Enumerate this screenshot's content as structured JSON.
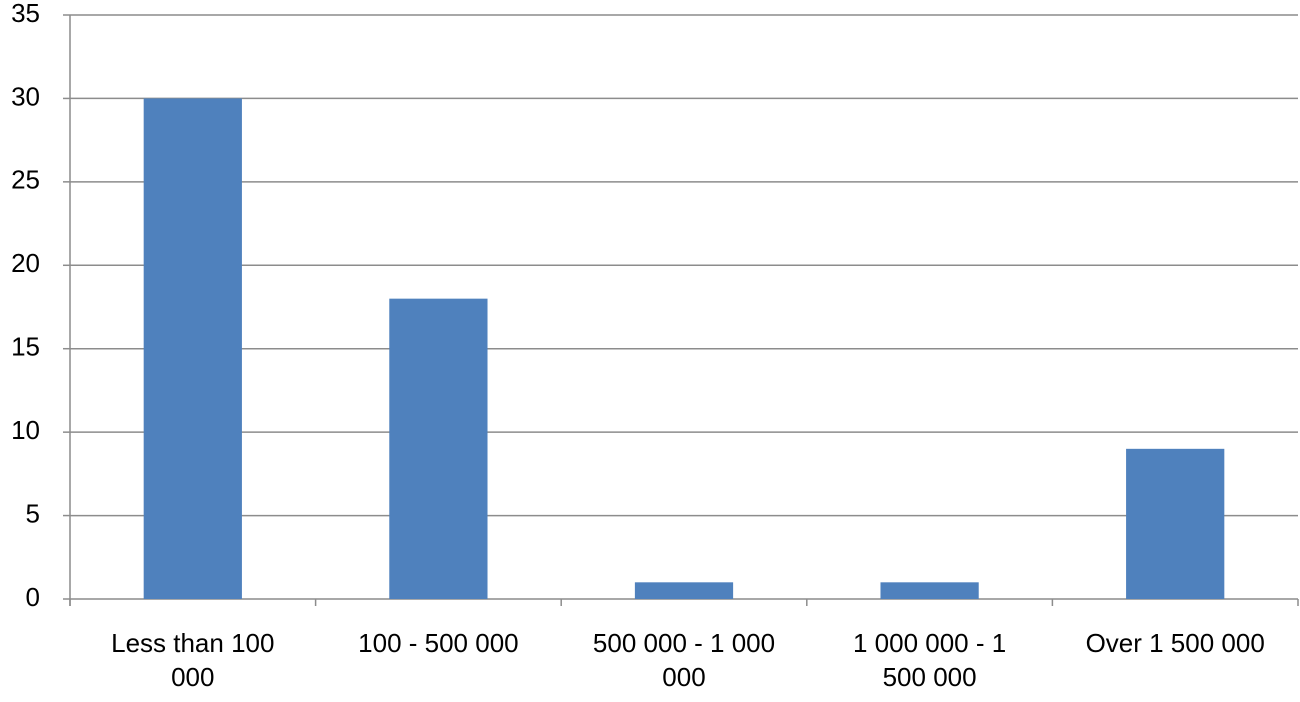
{
  "chart_data": {
    "type": "bar",
    "categories": [
      "Less than 100 000",
      "100 - 500 000",
      "500 000 - 1 000 000",
      "1 000 000 - 1 500 000",
      "Over 1 500 000"
    ],
    "values": [
      30,
      18,
      1,
      1,
      9
    ],
    "color": "#4f81bd",
    "ylim": [
      0,
      35
    ],
    "yticks": [
      0,
      5,
      10,
      15,
      20,
      25,
      30,
      35
    ],
    "grid": true
  }
}
